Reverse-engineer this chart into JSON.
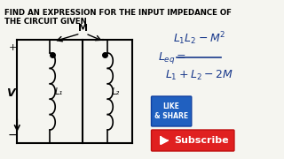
{
  "title_line1": "FIND AN EXPRESSION FOR THE INPUT IMPEDANCE OF",
  "title_line2": "THE CIRCUIT GIVEN",
  "bg_color": "#f5f5f0",
  "title_color": "#000000",
  "circuit_color": "#000000",
  "formula_color": "#1a3a8c",
  "subscribe_bg": "#e02020",
  "subscribe_text": "Subscribe",
  "like_text": "LIKE\n& SHARE",
  "M_label": "M",
  "L1_label": "L₁",
  "L2_label": "L₂",
  "V_label": "V"
}
